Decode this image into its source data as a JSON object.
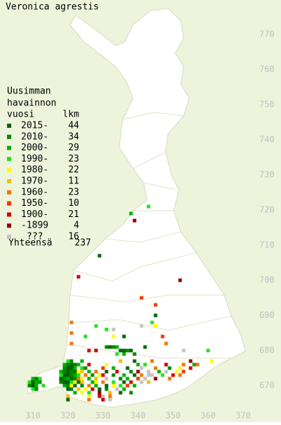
{
  "title": "Veronica agrestis",
  "legend": {
    "header": [
      "Uusimman",
      "havainnon",
      "vuosi"
    ],
    "count_header": "lkm",
    "items": [
      {
        "label": "2015-",
        "count": 44,
        "color": "#006400"
      },
      {
        "label": "2010-",
        "count": 34,
        "color": "#008800"
      },
      {
        "label": "2000-",
        "count": 29,
        "color": "#00b000"
      },
      {
        "label": "1990-",
        "count": 23,
        "color": "#22e022"
      },
      {
        "label": "1980-",
        "count": 22,
        "color": "#ffff00"
      },
      {
        "label": "1970-",
        "count": 11,
        "color": "#f0c000"
      },
      {
        "label": "1960-",
        "count": 23,
        "color": "#f07800"
      },
      {
        "label": "1950-",
        "count": 10,
        "color": "#f03800"
      },
      {
        "label": "1900-",
        "count": 21,
        "color": "#d00000"
      },
      {
        "label": "-1899",
        "count": 4,
        "color": "#900000"
      },
      {
        "label": "???",
        "count": 16,
        "color": "#c4c4c4"
      }
    ],
    "total_label": "Yhteensä",
    "total": 237
  },
  "xticks": [
    310,
    320,
    330,
    340,
    350,
    360,
    370
  ],
  "yticks": [
    670,
    680,
    690,
    700,
    710,
    720,
    730,
    740,
    750,
    760,
    770
  ],
  "squares": [
    [
      343,
      721,
      3
    ],
    [
      338,
      719,
      2
    ],
    [
      339,
      717,
      9
    ],
    [
      329,
      707,
      0
    ],
    [
      323,
      701,
      8
    ],
    [
      352,
      700,
      9
    ],
    [
      341,
      695,
      7
    ],
    [
      345,
      693,
      7
    ],
    [
      321,
      688,
      6
    ],
    [
      345,
      690,
      0
    ],
    [
      344,
      688,
      3
    ],
    [
      341,
      687,
      10
    ],
    [
      345,
      687,
      4
    ],
    [
      321,
      685,
      6
    ],
    [
      321,
      682,
      6
    ],
    [
      325,
      684,
      3
    ],
    [
      328,
      687,
      3
    ],
    [
      331,
      686,
      3
    ],
    [
      333,
      686,
      10
    ],
    [
      333,
      684,
      4
    ],
    [
      336,
      684,
      0
    ],
    [
      347,
      684,
      7
    ],
    [
      342,
      681,
      0
    ],
    [
      348,
      682,
      6
    ],
    [
      353,
      680,
      10
    ],
    [
      360,
      680,
      3
    ],
    [
      331,
      681,
      1
    ],
    [
      332,
      681,
      0
    ],
    [
      333,
      681,
      1
    ],
    [
      334,
      681,
      2
    ],
    [
      335,
      680,
      0
    ],
    [
      336,
      680,
      0
    ],
    [
      337,
      680,
      1
    ],
    [
      338,
      680,
      0
    ],
    [
      339,
      679,
      1
    ],
    [
      336,
      679,
      2
    ],
    [
      334,
      679,
      3
    ],
    [
      326,
      680,
      8
    ],
    [
      328,
      680,
      8
    ],
    [
      320,
      677,
      3
    ],
    [
      321,
      677,
      1
    ],
    [
      324,
      677,
      2
    ],
    [
      335,
      677,
      5
    ],
    [
      339,
      677,
      0
    ],
    [
      344,
      677,
      6
    ],
    [
      355,
      677,
      9
    ],
    [
      361,
      677,
      4
    ],
    [
      319,
      676,
      2
    ],
    [
      320,
      676,
      1
    ],
    [
      321,
      676,
      0
    ],
    [
      322,
      676,
      1
    ],
    [
      323,
      676,
      2
    ],
    [
      326,
      676,
      8
    ],
    [
      331,
      676,
      4
    ],
    [
      340,
      676,
      2
    ],
    [
      342,
      676,
      3
    ],
    [
      348,
      676,
      8
    ],
    [
      353,
      676,
      6
    ],
    [
      356,
      676,
      2
    ],
    [
      357,
      676,
      6
    ],
    [
      319,
      675,
      1
    ],
    [
      320,
      675,
      0
    ],
    [
      321,
      675,
      0
    ],
    [
      322,
      675,
      2
    ],
    [
      324,
      675,
      3
    ],
    [
      325,
      675,
      1
    ],
    [
      330,
      675,
      7
    ],
    [
      333,
      675,
      2
    ],
    [
      337,
      675,
      0
    ],
    [
      341,
      675,
      10
    ],
    [
      345,
      675,
      6
    ],
    [
      349,
      675,
      1
    ],
    [
      352,
      675,
      4
    ],
    [
      355,
      675,
      8
    ],
    [
      318,
      674,
      2
    ],
    [
      319,
      674,
      1
    ],
    [
      320,
      674,
      0
    ],
    [
      321,
      674,
      1
    ],
    [
      322,
      674,
      0
    ],
    [
      323,
      674,
      4
    ],
    [
      324,
      674,
      5
    ],
    [
      326,
      674,
      2
    ],
    [
      328,
      674,
      6
    ],
    [
      331,
      674,
      0
    ],
    [
      334,
      674,
      8
    ],
    [
      338,
      674,
      1
    ],
    [
      340,
      674,
      9
    ],
    [
      343,
      674,
      10
    ],
    [
      346,
      674,
      2
    ],
    [
      348,
      674,
      10
    ],
    [
      351,
      674,
      4
    ],
    [
      353,
      674,
      7
    ],
    [
      318,
      673,
      3
    ],
    [
      319,
      673,
      0
    ],
    [
      320,
      673,
      0
    ],
    [
      321,
      673,
      1
    ],
    [
      322,
      673,
      2
    ],
    [
      323,
      673,
      3
    ],
    [
      325,
      673,
      6
    ],
    [
      327,
      673,
      1
    ],
    [
      329,
      673,
      4
    ],
    [
      330,
      673,
      8
    ],
    [
      333,
      673,
      1
    ],
    [
      336,
      673,
      2
    ],
    [
      339,
      673,
      0
    ],
    [
      341,
      673,
      6
    ],
    [
      343,
      673,
      10
    ],
    [
      344,
      673,
      10
    ],
    [
      347,
      673,
      3
    ],
    [
      350,
      673,
      8
    ],
    [
      352,
      673,
      6
    ],
    [
      310,
      672,
      2
    ],
    [
      311,
      672,
      1
    ],
    [
      312,
      672,
      3
    ],
    [
      318,
      672,
      0
    ],
    [
      319,
      672,
      1
    ],
    [
      320,
      672,
      2
    ],
    [
      321,
      672,
      0
    ],
    [
      322,
      672,
      1
    ],
    [
      323,
      672,
      6
    ],
    [
      324,
      672,
      4
    ],
    [
      326,
      672,
      2
    ],
    [
      328,
      672,
      5
    ],
    [
      331,
      672,
      10
    ],
    [
      335,
      672,
      1
    ],
    [
      337,
      672,
      2
    ],
    [
      340,
      672,
      7
    ],
    [
      342,
      672,
      10
    ],
    [
      345,
      672,
      9
    ],
    [
      349,
      672,
      6
    ],
    [
      309,
      671,
      3
    ],
    [
      310,
      671,
      0
    ],
    [
      311,
      671,
      2
    ],
    [
      312,
      671,
      1
    ],
    [
      318,
      671,
      1
    ],
    [
      319,
      671,
      0
    ],
    [
      320,
      671,
      0
    ],
    [
      321,
      671,
      3
    ],
    [
      322,
      671,
      4
    ],
    [
      323,
      671,
      0
    ],
    [
      324,
      671,
      5
    ],
    [
      327,
      671,
      2
    ],
    [
      328,
      671,
      4
    ],
    [
      330,
      671,
      6
    ],
    [
      333,
      671,
      3
    ],
    [
      336,
      671,
      0
    ],
    [
      338,
      671,
      8
    ],
    [
      341,
      671,
      10
    ],
    [
      343,
      671,
      5
    ],
    [
      309,
      670,
      1
    ],
    [
      310,
      670,
      0
    ],
    [
      311,
      670,
      2
    ],
    [
      313,
      670,
      3
    ],
    [
      319,
      670,
      2
    ],
    [
      320,
      670,
      1
    ],
    [
      321,
      670,
      4
    ],
    [
      322,
      670,
      0
    ],
    [
      324,
      670,
      1
    ],
    [
      326,
      670,
      6
    ],
    [
      328,
      670,
      2
    ],
    [
      331,
      670,
      0
    ],
    [
      333,
      670,
      4
    ],
    [
      335,
      670,
      3
    ],
    [
      337,
      670,
      7
    ],
    [
      339,
      670,
      2
    ],
    [
      310,
      669,
      3
    ],
    [
      311,
      669,
      1
    ],
    [
      320,
      669,
      0
    ],
    [
      321,
      669,
      1
    ],
    [
      323,
      669,
      5
    ],
    [
      325,
      669,
      4
    ],
    [
      327,
      669,
      8
    ],
    [
      329,
      669,
      0
    ],
    [
      331,
      669,
      1
    ],
    [
      334,
      669,
      10
    ],
    [
      336,
      669,
      2
    ],
    [
      322,
      668,
      2
    ],
    [
      324,
      668,
      4
    ],
    [
      326,
      668,
      3
    ],
    [
      329,
      668,
      9
    ],
    [
      332,
      668,
      5
    ],
    [
      335,
      668,
      0
    ],
    [
      338,
      668,
      1
    ],
    [
      320,
      667,
      5
    ],
    [
      326,
      667,
      4
    ],
    [
      329,
      667,
      8
    ],
    [
      330,
      667,
      10
    ],
    [
      332,
      667,
      6
    ],
    [
      320,
      666,
      0
    ],
    [
      326,
      666,
      6
    ],
    [
      330,
      666,
      8
    ],
    [
      332,
      666,
      10
    ]
  ]
}
